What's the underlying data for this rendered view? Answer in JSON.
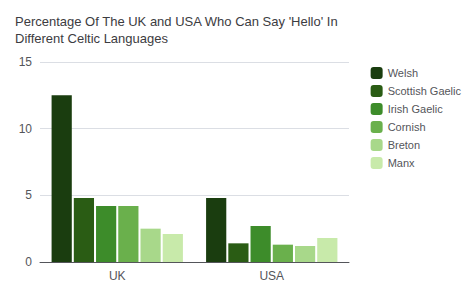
{
  "chart_data": {
    "type": "bar",
    "title": "Percentage Of The UK and USA Who Can Say 'Hello' In\nDifferent Celtic Languages",
    "categories": [
      "UK",
      "USA"
    ],
    "series": [
      {
        "name": "Welsh",
        "color": "#1a3d0f",
        "values": [
          12.5,
          4.8
        ]
      },
      {
        "name": "Scottish Gaelic",
        "color": "#2a5c14",
        "values": [
          4.8,
          1.4
        ]
      },
      {
        "name": "Irish Gaelic",
        "color": "#3d8c2a",
        "values": [
          4.2,
          2.7
        ]
      },
      {
        "name": "Cornish",
        "color": "#6ab04c",
        "values": [
          4.2,
          1.3
        ]
      },
      {
        "name": "Breton",
        "color": "#a8d88a",
        "values": [
          2.5,
          1.2
        ]
      },
      {
        "name": "Manx",
        "color": "#c8eaaa",
        "values": [
          2.1,
          1.8
        ]
      }
    ],
    "ylim": [
      0,
      15
    ],
    "yticks": [
      0,
      5,
      10,
      15
    ],
    "grid": true,
    "legend": "right"
  }
}
